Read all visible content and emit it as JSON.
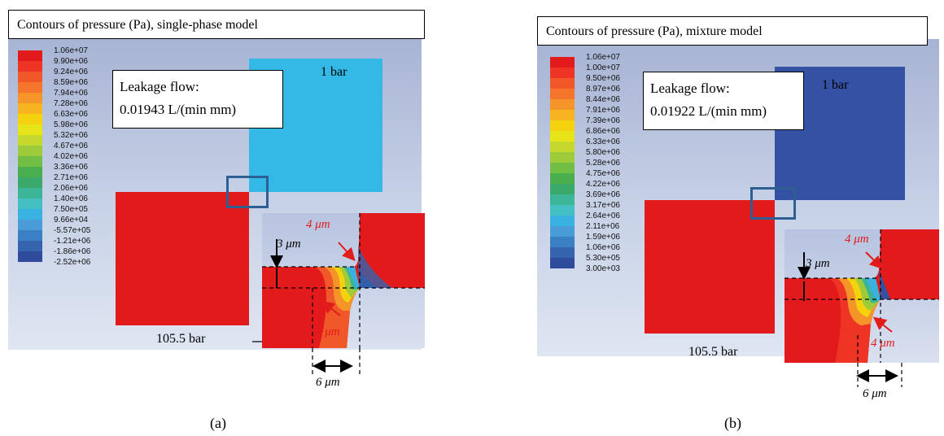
{
  "panel_a": {
    "title": "Contours of pressure (Pa), single-phase model",
    "leakage_label": "Leakage flow:",
    "leakage_value": "0.01943 L/(min mm)",
    "top_pressure": "1 bar",
    "bottom_pressure": "105.5 bar",
    "dim_top": "4 μm",
    "dim_vertical": "3 μm",
    "dim_bottom": "4 μm",
    "dim_horizontal": "6 μm",
    "caption": "(a)",
    "legend_labels": [
      "1.06e+07",
      "9.90e+06",
      "9.24e+06",
      "8.59e+06",
      "7.94e+06",
      "7.28e+06",
      "6.63e+06",
      "5.98e+06",
      "5.32e+06",
      "4.67e+06",
      "4.02e+06",
      "3.36e+06",
      "2.71e+06",
      "2.06e+06",
      "1.40e+06",
      "7.50e+05",
      "9.66e+04",
      "-5.57e+05",
      "-1.21e+06",
      "-1.86e+06",
      "-2.52e+06"
    ],
    "legend_colors": [
      "#e31a1c",
      "#ee3425",
      "#f0582a",
      "#f5762a",
      "#f59529",
      "#f8b320",
      "#f5d20e",
      "#e8e41a",
      "#c4d82d",
      "#9dcb3a",
      "#72bd43",
      "#4bae4e",
      "#3aa96a",
      "#3bb497",
      "#45c0c2",
      "#39b2e2",
      "#4a9cd9",
      "#3a7fc4",
      "#3563ad",
      "#2f4c9c"
    ],
    "colors": {
      "high": "#e31a1c",
      "top_block": "#34b9e6",
      "detail_right": "#3a7fc4",
      "outline": "#2e5f94"
    }
  },
  "panel_b": {
    "title": "Contours of pressure (Pa), mixture model",
    "leakage_label": "Leakage flow:",
    "leakage_value": "0.01922 L/(min mm)",
    "top_pressure": "1 bar",
    "bottom_pressure": "105.5 bar",
    "dim_top": "4 μm",
    "dim_vertical": "3 μm",
    "dim_bottom": "4 μm",
    "dim_horizontal": "6 μm",
    "caption": "(b)",
    "legend_labels": [
      "1.06e+07",
      "1.00e+07",
      "9.50e+06",
      "8.97e+06",
      "8.44e+06",
      "7.91e+06",
      "7.39e+06",
      "6.86e+06",
      "6.33e+06",
      "5.80e+06",
      "5.28e+06",
      "4.75e+06",
      "4.22e+06",
      "3.69e+06",
      "3.17e+06",
      "2.64e+06",
      "2.11e+06",
      "1.59e+06",
      "1.06e+06",
      "5.30e+05",
      "3.00e+03"
    ],
    "legend_colors": [
      "#e31a1c",
      "#ee3425",
      "#f0582a",
      "#f5762a",
      "#f59529",
      "#f8b320",
      "#f5d20e",
      "#e8e41a",
      "#c4d82d",
      "#9dcb3a",
      "#72bd43",
      "#4bae4e",
      "#3aa96a",
      "#3bb497",
      "#45c0c2",
      "#39b2e2",
      "#4a9cd9",
      "#3a7fc4",
      "#3563ad",
      "#2f4c9c"
    ],
    "colors": {
      "high": "#e31a1c",
      "top_block": "#3451a3",
      "detail_right": "#3451a3",
      "outline": "#2e5f94"
    }
  }
}
